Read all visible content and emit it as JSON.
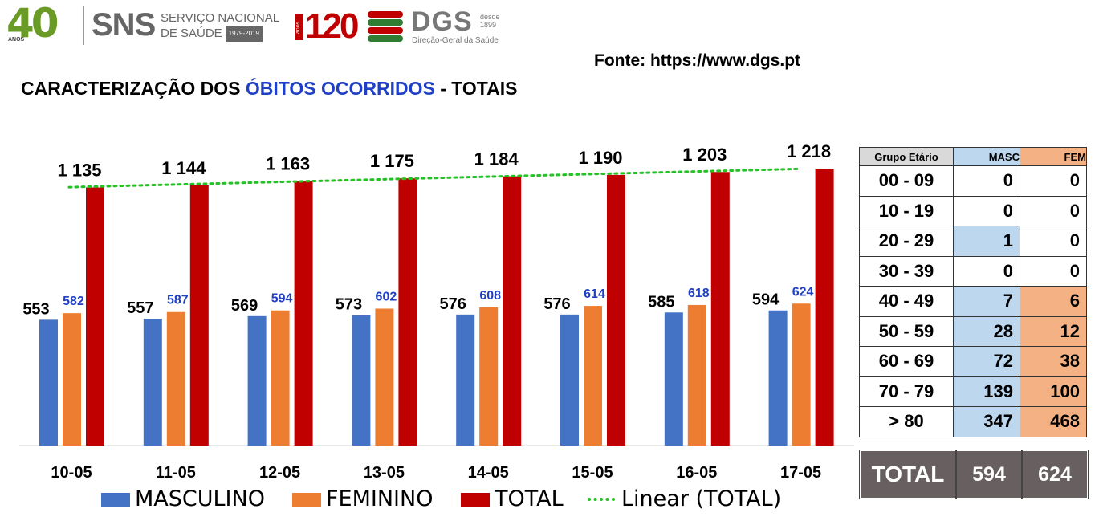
{
  "header": {
    "logo_40": "40",
    "logo_40_sub": "ANOS",
    "sns_name": "SNS",
    "sns_line1": "SERVIÇO NACIONAL",
    "sns_line2": "DE SAÚDE",
    "sns_years": "1979-2019",
    "c120": "120",
    "c120_sub": "anos",
    "dgs_name": "DGS",
    "dgs_desde": "desde",
    "dgs_year": "1899",
    "dgs_sub": "Direção-Geral da Saúde"
  },
  "source": "Fonte: https://www.dgs.pt",
  "title": {
    "part1": "CARACTERIZAÇÃO DOS ",
    "highlight": "ÓBITOS OCORRIDOS",
    "part2": " - TOTAIS"
  },
  "colors": {
    "masculino": "#4472c4",
    "feminino": "#ed7d31",
    "total": "#c00000",
    "trend": "#21c421",
    "masc_label": "#1f3fc4"
  },
  "chart_data": {
    "type": "bar",
    "categories": [
      "10-05",
      "11-05",
      "12-05",
      "13-05",
      "14-05",
      "15-05",
      "16-05",
      "17-05"
    ],
    "series": [
      {
        "name": "MASCULINO",
        "values": [
          553,
          557,
          569,
          573,
          576,
          576,
          585,
          594
        ],
        "labels": [
          "553",
          "557",
          "569",
          "573",
          "576",
          "576",
          "585",
          "594"
        ]
      },
      {
        "name": "FEMININO",
        "values": [
          582,
          587,
          594,
          602,
          608,
          614,
          618,
          624
        ],
        "labels": [
          "582",
          "587",
          "594",
          "602",
          "608",
          "614",
          "618",
          "624"
        ]
      },
      {
        "name": "TOTAL",
        "values": [
          1135,
          1144,
          1163,
          1175,
          1184,
          1190,
          1203,
          1218
        ],
        "labels": [
          "1 135",
          "1 144",
          "1 163",
          "1 175",
          "1 184",
          "1 190",
          "1 203",
          "1 218"
        ]
      }
    ],
    "trendline": {
      "name": "Linear (TOTAL)",
      "of": "TOTAL",
      "type": "linear"
    },
    "ylim": [
      0,
      1218
    ],
    "legend": {
      "position": "bottom",
      "entries": [
        "MASCULINO",
        "FEMININO",
        "TOTAL",
        "Linear (TOTAL)"
      ]
    },
    "grid": false
  },
  "age_table": {
    "headers": [
      "Grupo Etário",
      "MASC",
      "FEM"
    ],
    "rows": [
      {
        "group": "00 - 09",
        "masc": "0",
        "fem": "0"
      },
      {
        "group": "10 - 19",
        "masc": "0",
        "fem": "0"
      },
      {
        "group": "20 - 29",
        "masc": "1",
        "fem": "0"
      },
      {
        "group": "30 - 39",
        "masc": "0",
        "fem": "0"
      },
      {
        "group": "40 - 49",
        "masc": "7",
        "fem": "6"
      },
      {
        "group": "50 - 59",
        "masc": "28",
        "fem": "12"
      },
      {
        "group": "60 - 69",
        "masc": "72",
        "fem": "38"
      },
      {
        "group": "70 - 79",
        "masc": "139",
        "fem": "100"
      },
      {
        "group": "> 80",
        "masc": "347",
        "fem": "468"
      }
    ],
    "total": {
      "label": "TOTAL",
      "masc": "594",
      "fem": "624"
    }
  }
}
